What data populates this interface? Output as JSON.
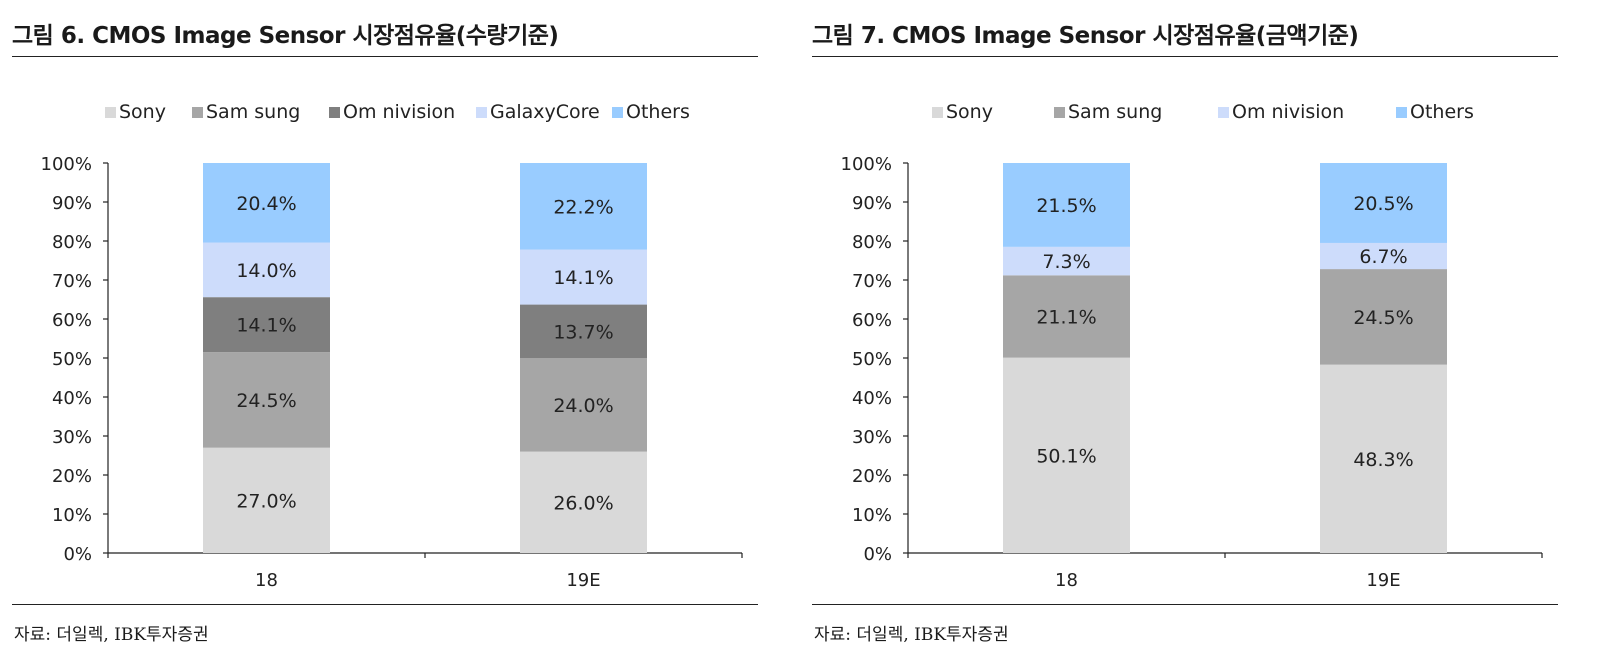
{
  "panels": [
    {
      "title": "그림 6. CMOS Image Sensor 시장점유율(수량기준)",
      "source": "자료: 더일렉, IBK투자증권",
      "chart_data": {
        "type": "bar",
        "stacked": true,
        "categories": [
          "18",
          "19E"
        ],
        "ylim": [
          0,
          100
        ],
        "yticks": [
          "0%",
          "10%",
          "20%",
          "30%",
          "40%",
          "50%",
          "60%",
          "70%",
          "80%",
          "90%",
          "100%"
        ],
        "legend_position": "top",
        "series": [
          {
            "name": "Sony",
            "color": "#d9d9d9",
            "values": [
              27.0,
              26.0
            ],
            "labels": [
              "27.0%",
              "26.0%"
            ]
          },
          {
            "name": "Sam sung",
            "color": "#a6a6a6",
            "values": [
              24.5,
              24.0
            ],
            "labels": [
              "24.5%",
              "24.0%"
            ]
          },
          {
            "name": "Om nivision",
            "color": "#7f7f7f",
            "values": [
              14.1,
              13.7
            ],
            "labels": [
              "14.1%",
              "13.7%"
            ]
          },
          {
            "name": "GalaxyCore",
            "color": "#cddcfb",
            "values": [
              14.0,
              14.1
            ],
            "labels": [
              "14.0%",
              "14.1%"
            ]
          },
          {
            "name": "Others",
            "color": "#99ccff",
            "values": [
              20.4,
              22.2
            ],
            "labels": [
              "20.4%",
              "22.2%"
            ]
          }
        ]
      }
    },
    {
      "title": "그림 7. CMOS Image Sensor 시장점유율(금액기준)",
      "source": "자료: 더일렉, IBK투자증권",
      "chart_data": {
        "type": "bar",
        "stacked": true,
        "categories": [
          "18",
          "19E"
        ],
        "ylim": [
          0,
          100
        ],
        "yticks": [
          "0%",
          "10%",
          "20%",
          "30%",
          "40%",
          "50%",
          "60%",
          "70%",
          "80%",
          "90%",
          "100%"
        ],
        "legend_position": "top",
        "series": [
          {
            "name": "Sony",
            "color": "#d9d9d9",
            "values": [
              50.1,
              48.3
            ],
            "labels": [
              "50.1%",
              "48.3%"
            ]
          },
          {
            "name": "Sam sung",
            "color": "#a6a6a6",
            "values": [
              21.1,
              24.5
            ],
            "labels": [
              "21.1%",
              "24.5%"
            ]
          },
          {
            "name": "Om nivision",
            "color": "#cddcfb",
            "values": [
              7.3,
              6.7
            ],
            "labels": [
              "7.3%",
              "6.7%"
            ]
          },
          {
            "name": "Others",
            "color": "#99ccff",
            "values": [
              21.5,
              20.5
            ],
            "labels": [
              "21.5%",
              "20.5%"
            ]
          }
        ]
      }
    }
  ]
}
